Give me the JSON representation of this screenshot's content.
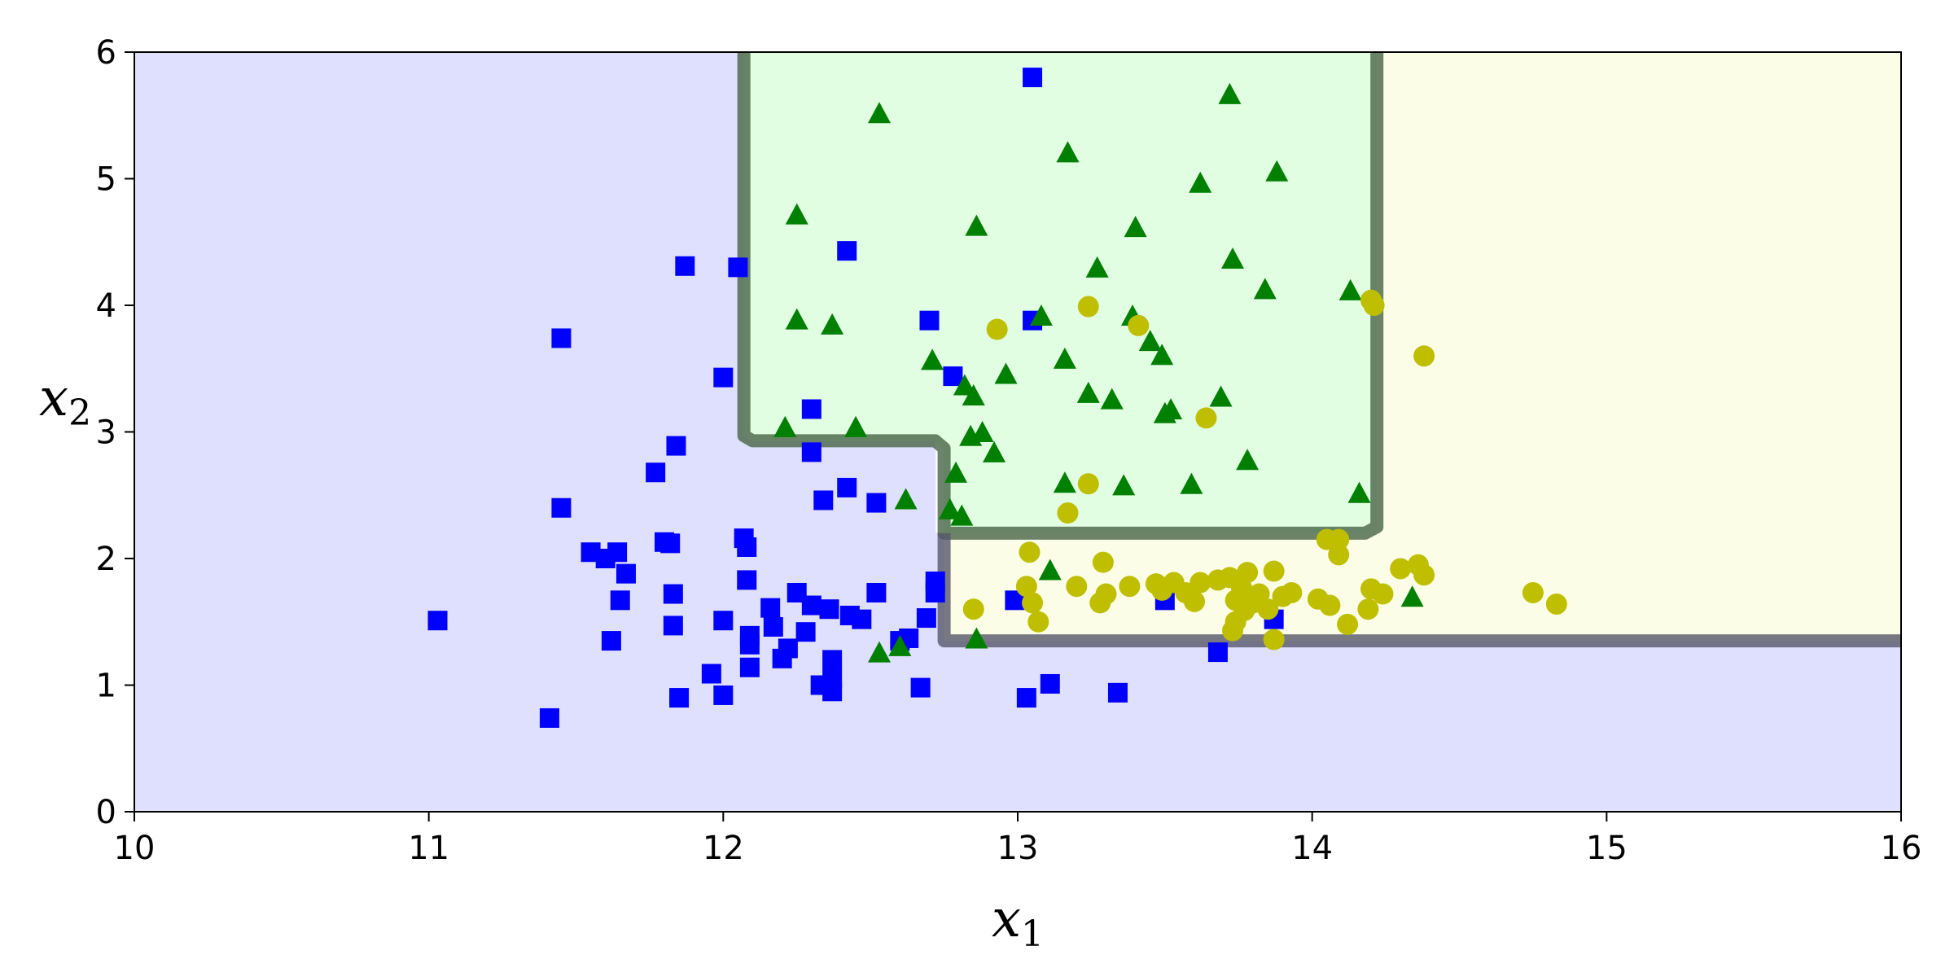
{
  "chart_data": {
    "type": "scatter",
    "title": "",
    "xlabel": "x",
    "xlabel_sub": "1",
    "ylabel": "x",
    "ylabel_sub": "2",
    "xlim": [
      10,
      16
    ],
    "ylim": [
      0,
      6
    ],
    "xticks": [
      "10",
      "11",
      "12",
      "13",
      "14",
      "15",
      "16"
    ],
    "yticks": [
      "0",
      "1",
      "2",
      "3",
      "4",
      "5",
      "6"
    ],
    "grid": false,
    "legend": "none",
    "regions": [
      {
        "class": "blue",
        "fill": "#dfdffe",
        "polygon": [
          [
            10,
            0
          ],
          [
            16,
            0
          ],
          [
            16,
            1.35
          ],
          [
            12.75,
            1.35
          ],
          [
            12.75,
            2.2
          ],
          [
            12.72,
            2.2
          ],
          [
            12.72,
            2.93
          ],
          [
            12.1,
            2.93
          ],
          [
            12.07,
            2.97
          ],
          [
            12.07,
            6
          ],
          [
            10,
            6
          ]
        ]
      },
      {
        "class": "green",
        "fill": "#e1fde2",
        "polygon": [
          [
            12.07,
            2.97
          ],
          [
            12.1,
            2.93
          ],
          [
            12.72,
            2.93
          ],
          [
            12.75,
            2.87
          ],
          [
            12.75,
            2.2
          ],
          [
            14.18,
            2.2
          ],
          [
            14.22,
            2.25
          ],
          [
            14.22,
            6
          ],
          [
            12.07,
            6
          ]
        ]
      },
      {
        "class": "yellow",
        "fill": "#fcfde7",
        "polygon": [
          [
            12.75,
            1.35
          ],
          [
            16,
            1.35
          ],
          [
            16,
            6
          ],
          [
            14.22,
            6
          ],
          [
            14.22,
            2.25
          ],
          [
            14.18,
            2.2
          ],
          [
            12.75,
            2.2
          ]
        ]
      }
    ],
    "boundaries": [
      {
        "color": "#476447",
        "points": [
          [
            12.07,
            6
          ],
          [
            12.07,
            2.97
          ],
          [
            12.1,
            2.93
          ],
          [
            12.72,
            2.93
          ],
          [
            12.75,
            2.87
          ],
          [
            12.75,
            2.2
          ],
          [
            14.18,
            2.2
          ],
          [
            14.22,
            2.25
          ],
          [
            14.22,
            6
          ]
        ]
      },
      {
        "color": "#56566a",
        "points": [
          [
            12.75,
            2.2
          ],
          [
            12.75,
            1.35
          ],
          [
            16,
            1.35
          ]
        ]
      }
    ],
    "series": [
      {
        "marker": "square",
        "color": "#0000ff",
        "points": [
          [
            11.03,
            1.51
          ],
          [
            11.41,
            0.74
          ],
          [
            11.45,
            3.74
          ],
          [
            11.45,
            2.4
          ],
          [
            11.55,
            2.05
          ],
          [
            11.6,
            2.0
          ],
          [
            11.62,
            1.35
          ],
          [
            11.64,
            2.05
          ],
          [
            11.65,
            1.67
          ],
          [
            11.67,
            1.88
          ],
          [
            11.77,
            2.68
          ],
          [
            11.8,
            2.13
          ],
          [
            11.82,
            2.12
          ],
          [
            11.83,
            1.47
          ],
          [
            11.83,
            1.72
          ],
          [
            11.84,
            2.89
          ],
          [
            11.85,
            0.9
          ],
          [
            11.87,
            4.31
          ],
          [
            11.96,
            1.09
          ],
          [
            12.0,
            3.43
          ],
          [
            12.0,
            1.51
          ],
          [
            12.0,
            0.92
          ],
          [
            12.05,
            4.3
          ],
          [
            12.07,
            2.16
          ],
          [
            12.08,
            2.09
          ],
          [
            12.08,
            1.83
          ],
          [
            12.09,
            1.39
          ],
          [
            12.09,
            1.32
          ],
          [
            12.09,
            1.14
          ],
          [
            12.16,
            1.61
          ],
          [
            12.17,
            1.46
          ],
          [
            12.2,
            1.21
          ],
          [
            12.22,
            1.29
          ],
          [
            12.25,
            1.73
          ],
          [
            12.28,
            1.42
          ],
          [
            12.3,
            2.84
          ],
          [
            12.3,
            3.18
          ],
          [
            12.3,
            1.63
          ],
          [
            12.33,
            1.0
          ],
          [
            12.34,
            2.46
          ],
          [
            12.36,
            1.6
          ],
          [
            12.37,
            1.2
          ],
          [
            12.37,
            1.05
          ],
          [
            12.37,
            0.95
          ],
          [
            12.42,
            2.56
          ],
          [
            12.42,
            4.43
          ],
          [
            12.43,
            1.55
          ],
          [
            12.47,
            1.52
          ],
          [
            12.52,
            2.44
          ],
          [
            12.52,
            1.73
          ],
          [
            12.6,
            1.35
          ],
          [
            12.63,
            1.37
          ],
          [
            12.67,
            0.98
          ],
          [
            12.69,
            1.53
          ],
          [
            12.7,
            3.88
          ],
          [
            12.72,
            1.73
          ],
          [
            12.72,
            1.82
          ],
          [
            12.78,
            3.44
          ],
          [
            12.99,
            1.67
          ],
          [
            13.03,
            0.9
          ],
          [
            13.05,
            3.88
          ],
          [
            13.05,
            5.8
          ],
          [
            13.11,
            1.01
          ],
          [
            13.34,
            0.94
          ],
          [
            13.5,
            1.67
          ],
          [
            13.68,
            1.26
          ],
          [
            13.87,
            1.52
          ]
        ]
      },
      {
        "marker": "triangle",
        "color": "#008000",
        "points": [
          [
            12.21,
            3.03
          ],
          [
            12.25,
            4.71
          ],
          [
            12.25,
            3.88
          ],
          [
            12.37,
            3.84
          ],
          [
            12.45,
            3.03
          ],
          [
            12.53,
            5.51
          ],
          [
            12.53,
            1.25
          ],
          [
            12.6,
            1.3
          ],
          [
            12.62,
            2.46
          ],
          [
            12.71,
            3.56
          ],
          [
            12.77,
            2.38
          ],
          [
            12.79,
            2.67
          ],
          [
            12.81,
            2.33
          ],
          [
            12.82,
            3.36
          ],
          [
            12.84,
            2.96
          ],
          [
            12.85,
            3.28
          ],
          [
            12.86,
            4.62
          ],
          [
            12.86,
            1.36
          ],
          [
            12.88,
            2.99
          ],
          [
            12.92,
            2.83
          ],
          [
            12.96,
            3.45
          ],
          [
            13.08,
            3.91
          ],
          [
            13.11,
            1.9
          ],
          [
            13.16,
            3.57
          ],
          [
            13.16,
            2.59
          ],
          [
            13.17,
            5.2
          ],
          [
            13.24,
            3.3
          ],
          [
            13.27,
            4.29
          ],
          [
            13.32,
            3.25
          ],
          [
            13.36,
            2.57
          ],
          [
            13.39,
            3.91
          ],
          [
            13.4,
            4.61
          ],
          [
            13.45,
            3.71
          ],
          [
            13.49,
            3.6
          ],
          [
            13.5,
            3.14
          ],
          [
            13.52,
            3.17
          ],
          [
            13.59,
            2.58
          ],
          [
            13.62,
            4.96
          ],
          [
            13.69,
            3.27
          ],
          [
            13.72,
            5.66
          ],
          [
            13.73,
            4.36
          ],
          [
            13.78,
            2.77
          ],
          [
            13.84,
            4.12
          ],
          [
            13.88,
            5.05
          ],
          [
            14.13,
            4.11
          ],
          [
            14.16,
            2.51
          ],
          [
            14.34,
            1.69
          ]
        ]
      },
      {
        "marker": "circle",
        "color": "#bfbf00",
        "points": [
          [
            12.85,
            1.6
          ],
          [
            12.93,
            3.81
          ],
          [
            13.03,
            1.78
          ],
          [
            13.04,
            2.05
          ],
          [
            13.05,
            1.65
          ],
          [
            13.07,
            1.5
          ],
          [
            13.2,
            1.78
          ],
          [
            13.24,
            3.99
          ],
          [
            13.24,
            2.59
          ],
          [
            13.28,
            1.65
          ],
          [
            13.29,
            1.97
          ],
          [
            13.3,
            1.72
          ],
          [
            13.17,
            2.36
          ],
          [
            13.38,
            1.78
          ],
          [
            13.41,
            3.84
          ],
          [
            13.47,
            1.8
          ],
          [
            13.49,
            1.75
          ],
          [
            13.53,
            1.81
          ],
          [
            13.57,
            1.73
          ],
          [
            13.6,
            1.66
          ],
          [
            13.62,
            1.81
          ],
          [
            13.64,
            3.11
          ],
          [
            13.68,
            1.83
          ],
          [
            13.72,
            1.85
          ],
          [
            13.73,
            1.43
          ],
          [
            13.74,
            1.67
          ],
          [
            13.74,
            1.5
          ],
          [
            13.76,
            1.77
          ],
          [
            13.77,
            1.59
          ],
          [
            13.78,
            1.89
          ],
          [
            13.8,
            1.65
          ],
          [
            13.82,
            1.72
          ],
          [
            13.85,
            1.6
          ],
          [
            13.87,
            1.36
          ],
          [
            13.87,
            1.9
          ],
          [
            13.9,
            1.7
          ],
          [
            13.93,
            1.73
          ],
          [
            14.02,
            1.68
          ],
          [
            14.05,
            2.15
          ],
          [
            14.06,
            1.63
          ],
          [
            14.09,
            2.15
          ],
          [
            14.09,
            2.03
          ],
          [
            14.12,
            1.48
          ],
          [
            14.19,
            1.6
          ],
          [
            14.2,
            1.76
          ],
          [
            14.2,
            4.04
          ],
          [
            14.21,
            4.0
          ],
          [
            14.24,
            1.72
          ],
          [
            14.3,
            1.92
          ],
          [
            14.36,
            1.95
          ],
          [
            14.38,
            1.87
          ],
          [
            14.38,
            3.6
          ],
          [
            14.75,
            1.73
          ],
          [
            14.83,
            1.64
          ]
        ]
      }
    ]
  }
}
